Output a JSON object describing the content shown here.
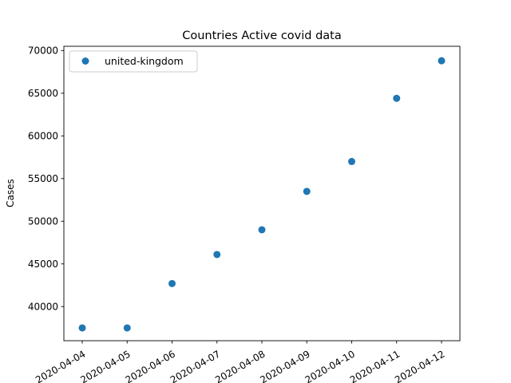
{
  "chart_data": {
    "type": "scatter",
    "title": "Countries Active covid data",
    "xlabel": "",
    "ylabel": "Cases",
    "x": [
      "2020-04-04",
      "2020-04-05",
      "2020-04-06",
      "2020-04-07",
      "2020-04-08",
      "2020-04-09",
      "2020-04-10",
      "2020-04-11",
      "2020-04-12"
    ],
    "series": [
      {
        "name": "united-kingdom",
        "color": "#1f77b4",
        "values": [
          37500,
          37500,
          42700,
          46100,
          49000,
          53500,
          57000,
          64400,
          68800
        ]
      }
    ],
    "ylim": [
      36000,
      70500
    ],
    "yticks": [
      40000,
      45000,
      50000,
      55000,
      60000,
      65000,
      70000
    ],
    "ytick_labels": [
      "40000",
      "45000",
      "50000",
      "55000",
      "60000",
      "65000",
      "70000"
    ],
    "xtick_labels": [
      "2020-04-04",
      "2020-04-05",
      "2020-04-06",
      "2020-04-07",
      "2020-04-08",
      "2020-04-09",
      "2020-04-10",
      "2020-04-11",
      "2020-04-12"
    ],
    "grid": false,
    "legend_position": "top-left"
  }
}
